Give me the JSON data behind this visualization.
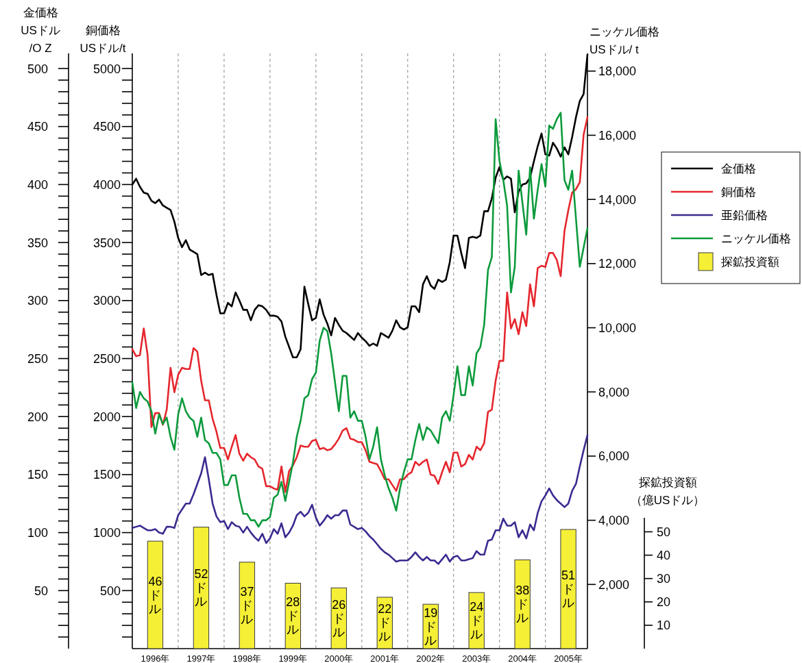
{
  "chart_data": [
    {
      "type": "line",
      "x": [
        "1996-01",
        "1996-02",
        "1996-03",
        "1996-04",
        "1996-05",
        "1996-06",
        "1996-07",
        "1996-08",
        "1996-09",
        "1996-10",
        "1996-11",
        "1996-12",
        "1997-01",
        "1997-02",
        "1997-03",
        "1997-04",
        "1997-05",
        "1997-06",
        "1997-07",
        "1997-08",
        "1997-09",
        "1997-10",
        "1997-11",
        "1997-12",
        "1998-01",
        "1998-02",
        "1998-03",
        "1998-04",
        "1998-05",
        "1998-06",
        "1998-07",
        "1998-08",
        "1998-09",
        "1998-10",
        "1998-11",
        "1998-12",
        "1999-01",
        "1999-02",
        "1999-03",
        "1999-04",
        "1999-05",
        "1999-06",
        "1999-07",
        "1999-08",
        "1999-09",
        "1999-10",
        "1999-11",
        "1999-12",
        "2000-01",
        "2000-02",
        "2000-03",
        "2000-04",
        "2000-05",
        "2000-06",
        "2000-07",
        "2000-08",
        "2000-09",
        "2000-10",
        "2000-11",
        "2000-12",
        "2001-01",
        "2001-02",
        "2001-03",
        "2001-04",
        "2001-05",
        "2001-06",
        "2001-07",
        "2001-08",
        "2001-09",
        "2001-10",
        "2001-11",
        "2001-12",
        "2002-01",
        "2002-02",
        "2002-03",
        "2002-04",
        "2002-05",
        "2002-06",
        "2002-07",
        "2002-08",
        "2002-09",
        "2002-10",
        "2002-11",
        "2002-12",
        "2003-01",
        "2003-02",
        "2003-03",
        "2003-04",
        "2003-05",
        "2003-06",
        "2003-07",
        "2003-08",
        "2003-09",
        "2003-10",
        "2003-11",
        "2003-12",
        "2004-01",
        "2004-02",
        "2004-03",
        "2004-04",
        "2004-05",
        "2004-06",
        "2004-07",
        "2004-08",
        "2004-09",
        "2004-10",
        "2004-11",
        "2004-12",
        "2005-01",
        "2005-02",
        "2005-03",
        "2005-04",
        "2005-05",
        "2005-06",
        "2005-07",
        "2005-08",
        "2005-09",
        "2005-10",
        "2005-11",
        "2005-12"
      ],
      "series": [
        {
          "name": "金価格",
          "color": "#000000",
          "axis": "y2",
          "values": [
            400,
            405,
            398,
            393,
            392,
            386,
            384,
            387,
            382,
            380,
            378,
            368,
            354,
            346,
            352,
            344,
            342,
            340,
            322,
            324,
            322,
            323,
            305,
            289,
            289,
            298,
            295,
            307,
            300,
            292,
            292,
            283,
            292,
            296,
            295,
            292,
            287,
            287,
            286,
            282,
            269,
            260,
            251,
            251,
            258,
            312,
            297,
            283,
            285,
            301,
            288,
            280,
            270,
            285,
            279,
            274,
            272,
            269,
            266,
            272,
            268,
            265,
            261,
            263,
            261,
            272,
            270,
            268,
            274,
            283,
            277,
            275,
            277,
            295,
            295,
            290,
            314,
            321,
            313,
            310,
            318,
            316,
            318,
            333,
            356,
            356,
            341,
            328,
            354,
            355,
            354,
            356,
            377,
            377,
            388,
            406,
            415,
            404,
            407,
            405,
            376,
            394,
            400,
            401,
            406,
            420,
            433,
            444,
            426,
            425,
            436,
            431,
            424,
            432,
            426,
            441,
            458,
            472,
            478,
            512
          ]
        },
        {
          "name": "銅価格",
          "color": "#e5262d",
          "values": [
            2580,
            2520,
            2530,
            2760,
            2530,
            1910,
            2030,
            2030,
            1930,
            2060,
            2420,
            2210,
            2360,
            2420,
            2410,
            2410,
            2590,
            2560,
            2310,
            2140,
            2140,
            1980,
            1870,
            1730,
            1730,
            1630,
            1740,
            1840,
            1680,
            1620,
            1680,
            1650,
            1630,
            1570,
            1550,
            1400,
            1400,
            1380,
            1370,
            1570,
            1350,
            1530,
            1580,
            1650,
            1750,
            1740,
            1740,
            1790,
            1800,
            1720,
            1730,
            1710,
            1720,
            1760,
            1810,
            1880,
            1900,
            1810,
            1800,
            1780,
            1780,
            1710,
            1610,
            1600,
            1590,
            1530,
            1460,
            1460,
            1410,
            1360,
            1460,
            1460,
            1500,
            1520,
            1610,
            1580,
            1610,
            1630,
            1500,
            1490,
            1420,
            1520,
            1610,
            1520,
            1690,
            1690,
            1570,
            1590,
            1670,
            1630,
            1740,
            1710,
            1770,
            2040,
            2060,
            2310,
            2480,
            2480,
            3070,
            2760,
            2840,
            2710,
            2900,
            2780,
            3140,
            2950,
            3280,
            3300,
            3290,
            3410,
            3410,
            3350,
            3210,
            3600,
            3780,
            3930,
            3960,
            4020,
            4430,
            4580
          ]
        },
        {
          "name": "亜鉛価格",
          "color": "#3b2a90",
          "values": [
            1040,
            1050,
            1060,
            1040,
            1020,
            1020,
            1030,
            1000,
            990,
            1050,
            1050,
            1040,
            1150,
            1200,
            1250,
            1250,
            1330,
            1420,
            1510,
            1650,
            1460,
            1250,
            1140,
            1090,
            1100,
            1030,
            1090,
            1060,
            1050,
            1000,
            1050,
            1000,
            960,
            930,
            990,
            910,
            950,
            1030,
            990,
            1080,
            960,
            1000,
            1060,
            1150,
            1180,
            1140,
            1170,
            1240,
            1130,
            1060,
            1100,
            1150,
            1120,
            1150,
            1150,
            1190,
            1190,
            1070,
            1050,
            1030,
            1040,
            1010,
            970,
            940,
            900,
            860,
            830,
            810,
            780,
            750,
            760,
            760,
            760,
            790,
            830,
            790,
            760,
            790,
            760,
            760,
            730,
            770,
            810,
            750,
            790,
            800,
            760,
            760,
            770,
            780,
            840,
            810,
            810,
            930,
            940,
            1020,
            1020,
            1120,
            1060,
            1060,
            1090,
            960,
            1020,
            950,
            1070,
            1020,
            1170,
            1270,
            1320,
            1380,
            1320,
            1280,
            1250,
            1220,
            1250,
            1360,
            1420,
            1570,
            1710,
            1840
          ]
        },
        {
          "name": "ニッケル価格",
          "color": "#0c9a3c",
          "axis": "y3",
          "values": [
            8300,
            7500,
            8000,
            7800,
            7700,
            7400,
            6700,
            7300,
            7000,
            7200,
            6600,
            6200,
            7300,
            7800,
            7400,
            7200,
            7100,
            6600,
            7200,
            6500,
            6400,
            6100,
            6100,
            5900,
            5100,
            5100,
            5400,
            5400,
            4700,
            4200,
            4200,
            4000,
            4000,
            3800,
            4000,
            4000,
            4100,
            4700,
            4800,
            5200,
            4600,
            5200,
            5800,
            6600,
            7100,
            7800,
            7900,
            8400,
            8600,
            9600,
            10000,
            9900,
            9200,
            8300,
            7400,
            8500,
            8500,
            7200,
            7400,
            7100,
            7100,
            6600,
            5900,
            6300,
            6900,
            5900,
            5400,
            5000,
            4700,
            4300,
            5000,
            5500,
            5900,
            5900,
            6500,
            7000,
            6500,
            6900,
            6800,
            6600,
            6400,
            7200,
            7400,
            7100,
            7900,
            8800,
            7900,
            7900,
            8800,
            8200,
            9200,
            9400,
            10100,
            11800,
            12200,
            16500,
            15200,
            14600,
            13800,
            11100,
            11900,
            14900,
            13900,
            12900,
            15000,
            13400,
            14300,
            15100,
            14400,
            16300,
            16200,
            16500,
            16700,
            14600,
            14300,
            14900,
            13400,
            11900,
            12500,
            13100
          ]
        }
      ],
      "xlim": [
        "1996-01",
        "2005-12"
      ],
      "xticks": [
        {
          "value": "1996-07",
          "label": "1996年"
        },
        {
          "value": "1997-07",
          "label": "1997年"
        },
        {
          "value": "1998-07",
          "label": "1998年"
        },
        {
          "value": "1999-07",
          "label": "1999年"
        },
        {
          "value": "2000-07",
          "label": "2000年"
        },
        {
          "value": "2001-07",
          "label": "2001年"
        },
        {
          "value": "2002-07",
          "label": "2002年"
        },
        {
          "value": "2003-07",
          "label": "2003年"
        },
        {
          "value": "2004-07",
          "label": "2004年"
        },
        {
          "value": "2005-07",
          "label": "2005年"
        }
      ],
      "ylabel": "銅価格\nUSドル/t",
      "ylim": [
        0,
        5130
      ],
      "yticks": [
        {
          "value": 100,
          "label": null
        },
        {
          "value": 200,
          "label": null
        },
        {
          "value": 300,
          "label": null
        },
        {
          "value": 400,
          "label": null
        },
        500,
        {
          "value": 600,
          "label": null
        },
        {
          "value": 700,
          "label": null
        },
        {
          "value": 800,
          "label": null
        },
        {
          "value": 900,
          "label": null
        },
        1000,
        {
          "value": 1100,
          "label": null
        },
        {
          "value": 1200,
          "label": null
        },
        {
          "value": 1300,
          "label": null
        },
        {
          "value": 1400,
          "label": null
        },
        1500,
        {
          "value": 1600,
          "label": null
        },
        {
          "value": 1700,
          "label": null
        },
        {
          "value": 1800,
          "label": null
        },
        {
          "value": 1900,
          "label": null
        },
        2000,
        {
          "value": 2100,
          "label": null
        },
        {
          "value": 2200,
          "label": null
        },
        {
          "value": 2300,
          "label": null
        },
        {
          "value": 2400,
          "label": null
        },
        2500,
        {
          "value": 2600,
          "label": null
        },
        {
          "value": 2700,
          "label": null
        },
        {
          "value": 2800,
          "label": null
        },
        {
          "value": 2900,
          "label": null
        },
        3000,
        {
          "value": 3100,
          "label": null
        },
        {
          "value": 3200,
          "label": null
        },
        {
          "value": 3300,
          "label": null
        },
        {
          "value": 3400,
          "label": null
        },
        3500,
        {
          "value": 3600,
          "label": null
        },
        {
          "value": 3700,
          "label": null
        },
        {
          "value": 3800,
          "label": null
        },
        {
          "value": 3900,
          "label": null
        },
        4000,
        {
          "value": 4100,
          "label": null
        },
        {
          "value": 4200,
          "label": null
        },
        {
          "value": 4300,
          "label": null
        },
        {
          "value": 4400,
          "label": null
        },
        4500,
        {
          "value": 4600,
          "label": null
        },
        {
          "value": 4700,
          "label": null
        },
        {
          "value": 4800,
          "label": null
        },
        {
          "value": 4900,
          "label": null
        },
        5000
      ],
      "y2label": "金価格\nUSドル\n/O Z",
      "y2lim": [
        0,
        513
      ],
      "y2ticks": [
        {
          "value": 10,
          "label": null
        },
        {
          "value": 20,
          "label": null
        },
        {
          "value": 30,
          "label": null
        },
        {
          "value": 40,
          "label": null
        },
        50,
        {
          "value": 60,
          "label": null
        },
        {
          "value": 70,
          "label": null
        },
        {
          "value": 80,
          "label": null
        },
        {
          "value": 90,
          "label": null
        },
        100,
        {
          "value": 110,
          "label": null
        },
        {
          "value": 120,
          "label": null
        },
        {
          "value": 130,
          "label": null
        },
        {
          "value": 140,
          "label": null
        },
        150,
        {
          "value": 160,
          "label": null
        },
        {
          "value": 170,
          "label": null
        },
        {
          "value": 180,
          "label": null
        },
        {
          "value": 190,
          "label": null
        },
        200,
        {
          "value": 210,
          "label": null
        },
        {
          "value": 220,
          "label": null
        },
        {
          "value": 230,
          "label": null
        },
        {
          "value": 240,
          "label": null
        },
        250,
        {
          "value": 260,
          "label": null
        },
        {
          "value": 270,
          "label": null
        },
        {
          "value": 280,
          "label": null
        },
        {
          "value": 290,
          "label": null
        },
        300,
        {
          "value": 310,
          "label": null
        },
        {
          "value": 320,
          "label": null
        },
        {
          "value": 330,
          "label": null
        },
        {
          "value": 340,
          "label": null
        },
        350,
        {
          "value": 360,
          "label": null
        },
        {
          "value": 370,
          "label": null
        },
        {
          "value": 380,
          "label": null
        },
        {
          "value": 390,
          "label": null
        },
        400,
        {
          "value": 410,
          "label": null
        },
        {
          "value": 420,
          "label": null
        },
        {
          "value": 430,
          "label": null
        },
        {
          "value": 440,
          "label": null
        },
        450,
        {
          "value": 460,
          "label": null
        },
        {
          "value": 470,
          "label": null
        },
        {
          "value": 480,
          "label": null
        },
        {
          "value": 490,
          "label": null
        },
        500
      ],
      "y3label": "ニッケル価格\nUSドル/ t",
      "y3lim": [
        0,
        18550
      ],
      "y3ticks": [
        {
          "value": 2000,
          "label": "2,000"
        },
        {
          "value": 4000,
          "label": "4,000"
        },
        {
          "value": 6000,
          "label": "6,000"
        },
        {
          "value": 8000,
          "label": "8,000"
        },
        {
          "value": 10000,
          "label": "10,000"
        },
        {
          "value": 12000,
          "label": "12,000"
        },
        {
          "value": 14000,
          "label": "14,000"
        },
        {
          "value": 16000,
          "label": "16,000"
        },
        {
          "value": 18000,
          "label": "18,000"
        }
      ],
      "ref_lines": [
        {
          "axis": "x",
          "value": "1997-01",
          "color": "#9a9a9a",
          "line_style": "dashed"
        },
        {
          "axis": "x",
          "value": "1998-01",
          "color": "#9a9a9a",
          "line_style": "dashed"
        },
        {
          "axis": "x",
          "value": "1999-01",
          "color": "#9a9a9a",
          "line_style": "dashed"
        },
        {
          "axis": "x",
          "value": "2000-01",
          "color": "#9a9a9a",
          "line_style": "dashed"
        },
        {
          "axis": "x",
          "value": "2001-01",
          "color": "#9a9a9a",
          "line_style": "dashed"
        },
        {
          "axis": "x",
          "value": "2002-01",
          "color": "#9a9a9a",
          "line_style": "dashed"
        },
        {
          "axis": "x",
          "value": "2003-01",
          "color": "#9a9a9a",
          "line_style": "dashed"
        },
        {
          "axis": "x",
          "value": "2004-01",
          "color": "#9a9a9a",
          "line_style": "dashed"
        },
        {
          "axis": "x",
          "value": "2005-01",
          "color": "#9a9a9a",
          "line_style": "dashed"
        }
      ],
      "legend": "right"
    },
    {
      "type": "bar",
      "x": [
        "1996-07",
        "1997-07",
        "1998-07",
        "1999-07",
        "2000-07",
        "2001-07",
        "2002-07",
        "2003-07",
        "2004-07",
        "2005-07"
      ],
      "xlim": [
        "1996-01",
        "2005-12"
      ],
      "series": [
        {
          "name": "探鉱投資額",
          "color": "#f5ef36",
          "values": [
            46,
            52,
            37,
            28,
            26,
            22,
            19,
            24,
            38,
            51
          ],
          "value_labels": [
            "46ドル",
            "52ドル",
            "37ドル",
            "28ドル",
            "26ドル",
            "22ドル",
            "19ドル",
            "24ドル",
            "38ドル",
            "51ドル"
          ]
        }
      ],
      "ylabel": "探鉱投資額（億USドル）",
      "ylim": [
        0,
        56
      ],
      "yticks": [
        10,
        20,
        30,
        40,
        50
      ],
      "tick_labels": "y",
      "legend": "right"
    }
  ]
}
